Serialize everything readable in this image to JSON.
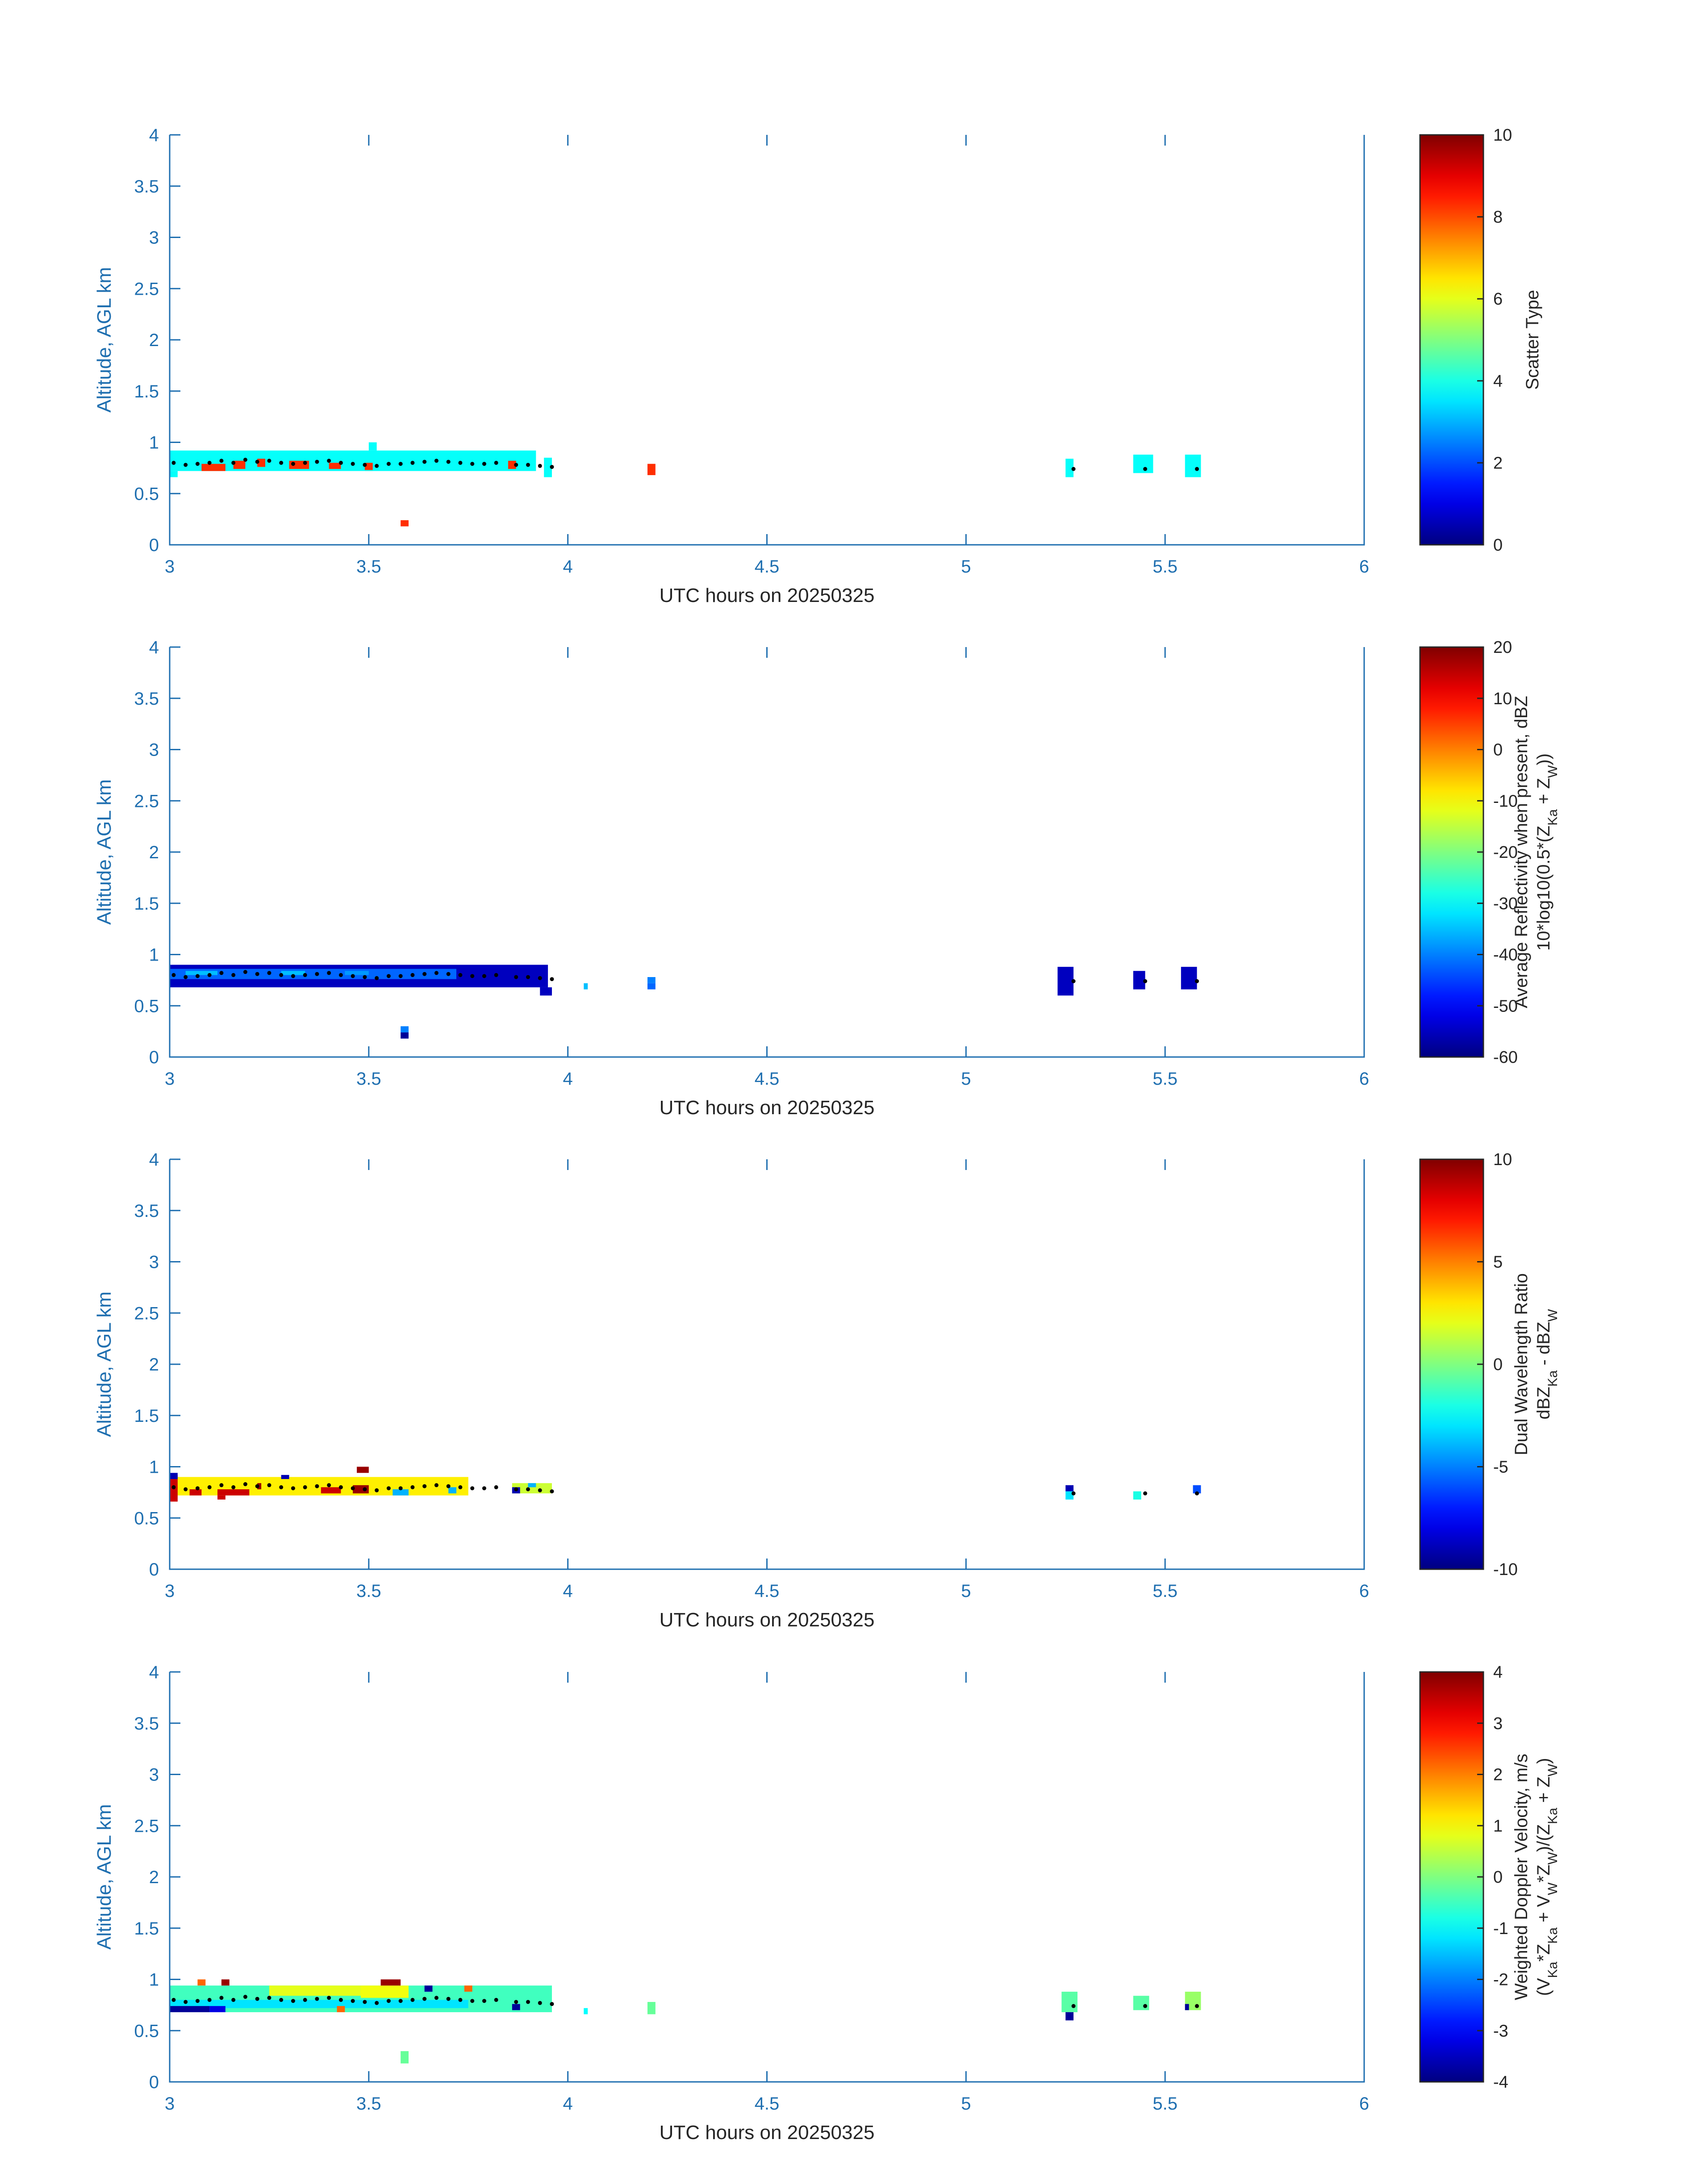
{
  "colors": {
    "axis": "#1f6fb0",
    "text": "#262626",
    "marker": "#000000"
  },
  "chart_data": [
    {
      "type": "heatmap",
      "id": "scatter",
      "xlabel": "UTC hours on 20250325",
      "ylabel": "Altitude, AGL km",
      "xlim": [
        3,
        6
      ],
      "ylim": [
        0,
        4
      ],
      "xticks": [
        "3",
        "3.5",
        "4",
        "4.5",
        "5",
        "5.5",
        "6"
      ],
      "yticks": [
        "0",
        "0.5",
        "1",
        "1.5",
        "2",
        "2.5",
        "3",
        "3.5",
        "4"
      ],
      "colorbar": {
        "label_lines": [
          "Scatter Type"
        ],
        "range": [
          0,
          10
        ],
        "ticks": [
          "0",
          "2",
          "4",
          "6",
          "8",
          "10"
        ],
        "colormap": "jet"
      },
      "cells": [
        {
          "x0": 3.0,
          "x1": 3.92,
          "y0": 0.72,
          "y1": 0.92,
          "v": 3.8
        },
        {
          "x0": 3.0,
          "x1": 3.02,
          "y0": 0.66,
          "y1": 0.72,
          "v": 3.8
        },
        {
          "x0": 3.08,
          "x1": 3.14,
          "y0": 0.72,
          "y1": 0.79,
          "v": 8.3
        },
        {
          "x0": 3.16,
          "x1": 3.19,
          "y0": 0.74,
          "y1": 0.82,
          "v": 8.3
        },
        {
          "x0": 3.22,
          "x1": 3.24,
          "y0": 0.76,
          "y1": 0.84,
          "v": 8.3
        },
        {
          "x0": 3.3,
          "x1": 3.35,
          "y0": 0.74,
          "y1": 0.82,
          "v": 8.3
        },
        {
          "x0": 3.4,
          "x1": 3.43,
          "y0": 0.74,
          "y1": 0.8,
          "v": 8.3
        },
        {
          "x0": 3.49,
          "x1": 3.51,
          "y0": 0.73,
          "y1": 0.8,
          "v": 8.3
        },
        {
          "x0": 3.5,
          "x1": 3.52,
          "y0": 0.92,
          "y1": 1.0,
          "v": 3.8
        },
        {
          "x0": 3.85,
          "x1": 3.87,
          "y0": 0.74,
          "y1": 0.82,
          "v": 8.3
        },
        {
          "x0": 3.94,
          "x1": 3.96,
          "y0": 0.66,
          "y1": 0.85,
          "v": 3.8
        },
        {
          "x0": 4.2,
          "x1": 4.22,
          "y0": 0.68,
          "y1": 0.79,
          "v": 8.3
        },
        {
          "x0": 3.58,
          "x1": 3.6,
          "y0": 0.18,
          "y1": 0.24,
          "v": 8.3
        },
        {
          "x0": 5.25,
          "x1": 5.27,
          "y0": 0.66,
          "y1": 0.84,
          "v": 3.8
        },
        {
          "x0": 5.42,
          "x1": 5.47,
          "y0": 0.7,
          "y1": 0.88,
          "v": 3.8
        },
        {
          "x0": 5.55,
          "x1": 5.59,
          "y0": 0.66,
          "y1": 0.88,
          "v": 3.8
        }
      ],
      "markers": {
        "x": [
          3.01,
          3.04,
          3.07,
          3.1,
          3.13,
          3.16,
          3.19,
          3.22,
          3.25,
          3.28,
          3.31,
          3.34,
          3.37,
          3.4,
          3.43,
          3.46,
          3.49,
          3.52,
          3.55,
          3.58,
          3.61,
          3.64,
          3.67,
          3.7,
          3.73,
          3.76,
          3.79,
          3.82,
          3.87,
          3.9,
          3.93,
          3.96,
          5.27,
          5.45,
          5.58
        ],
        "y": [
          0.8,
          0.78,
          0.79,
          0.8,
          0.82,
          0.8,
          0.83,
          0.81,
          0.82,
          0.8,
          0.79,
          0.8,
          0.81,
          0.82,
          0.8,
          0.79,
          0.78,
          0.77,
          0.79,
          0.79,
          0.8,
          0.81,
          0.82,
          0.81,
          0.8,
          0.79,
          0.79,
          0.8,
          0.78,
          0.78,
          0.77,
          0.76,
          0.74,
          0.74,
          0.74
        ]
      }
    },
    {
      "type": "heatmap",
      "id": "reflectivity",
      "xlabel": "UTC hours on 20250325",
      "ylabel": "Altitude, AGL km",
      "xlim": [
        3,
        6
      ],
      "ylim": [
        0,
        4
      ],
      "xticks": [
        "3",
        "3.5",
        "4",
        "4.5",
        "5",
        "5.5",
        "6"
      ],
      "yticks": [
        "0",
        "0.5",
        "1",
        "1.5",
        "2",
        "2.5",
        "3",
        "3.5",
        "4"
      ],
      "colorbar": {
        "label_lines": [
          "Average Reflectivity when present, dBZ",
          "10*log10(0.5*(Z_Ka + Z_W))"
        ],
        "range": [
          -60,
          20
        ],
        "ticks": [
          "-60",
          "-50",
          "-40",
          "-30",
          "-20",
          "-10",
          "0",
          "10",
          "20"
        ],
        "colormap": "jet"
      },
      "cells": [
        {
          "x0": 3.0,
          "x1": 3.95,
          "y0": 0.68,
          "y1": 0.9,
          "v": -55
        },
        {
          "x0": 3.0,
          "x1": 3.72,
          "y0": 0.76,
          "y1": 0.86,
          "v": -42
        },
        {
          "x0": 3.04,
          "x1": 3.12,
          "y0": 0.8,
          "y1": 0.84,
          "v": -35
        },
        {
          "x0": 3.28,
          "x1": 3.34,
          "y0": 0.8,
          "y1": 0.84,
          "v": -35
        },
        {
          "x0": 3.44,
          "x1": 3.5,
          "y0": 0.8,
          "y1": 0.84,
          "v": -38
        },
        {
          "x0": 3.93,
          "x1": 3.96,
          "y0": 0.6,
          "y1": 0.68,
          "v": -55
        },
        {
          "x0": 4.04,
          "x1": 4.05,
          "y0": 0.66,
          "y1": 0.72,
          "v": -35
        },
        {
          "x0": 4.2,
          "x1": 4.22,
          "y0": 0.66,
          "y1": 0.72,
          "v": -42
        },
        {
          "x0": 4.2,
          "x1": 4.22,
          "y0": 0.72,
          "y1": 0.78,
          "v": -40
        },
        {
          "x0": 3.58,
          "x1": 3.6,
          "y0": 0.24,
          "y1": 0.3,
          "v": -40
        },
        {
          "x0": 3.58,
          "x1": 3.6,
          "y0": 0.18,
          "y1": 0.24,
          "v": -58
        },
        {
          "x0": 5.23,
          "x1": 5.27,
          "y0": 0.6,
          "y1": 0.88,
          "v": -55
        },
        {
          "x0": 5.42,
          "x1": 5.45,
          "y0": 0.66,
          "y1": 0.84,
          "v": -55
        },
        {
          "x0": 5.54,
          "x1": 5.58,
          "y0": 0.66,
          "y1": 0.88,
          "v": -55
        }
      ],
      "markers": {
        "x": [
          3.01,
          3.04,
          3.07,
          3.1,
          3.13,
          3.16,
          3.19,
          3.22,
          3.25,
          3.28,
          3.31,
          3.34,
          3.37,
          3.4,
          3.43,
          3.46,
          3.49,
          3.52,
          3.55,
          3.58,
          3.61,
          3.64,
          3.67,
          3.7,
          3.73,
          3.76,
          3.79,
          3.82,
          3.87,
          3.9,
          3.93,
          3.96,
          5.27,
          5.45,
          5.58
        ],
        "y": [
          0.8,
          0.78,
          0.79,
          0.8,
          0.82,
          0.8,
          0.83,
          0.81,
          0.82,
          0.8,
          0.79,
          0.8,
          0.81,
          0.82,
          0.8,
          0.79,
          0.78,
          0.77,
          0.79,
          0.79,
          0.8,
          0.81,
          0.82,
          0.81,
          0.8,
          0.79,
          0.79,
          0.8,
          0.78,
          0.78,
          0.77,
          0.76,
          0.74,
          0.74,
          0.74
        ]
      }
    },
    {
      "type": "heatmap",
      "id": "dwr",
      "xlabel": "UTC hours on 20250325",
      "ylabel": "Altitude, AGL km",
      "xlim": [
        3,
        6
      ],
      "ylim": [
        0,
        4
      ],
      "xticks": [
        "3",
        "3.5",
        "4",
        "4.5",
        "5",
        "5.5",
        "6"
      ],
      "yticks": [
        "0",
        "0.5",
        "1",
        "1.5",
        "2",
        "2.5",
        "3",
        "3.5",
        "4"
      ],
      "colorbar": {
        "label_lines": [
          "Dual Wavelength Ratio",
          "dBZ_Ka - dBZ_W"
        ],
        "range": [
          -10,
          10
        ],
        "ticks": [
          "-10",
          "-5",
          "0",
          "5",
          "10"
        ],
        "colormap": "jet"
      },
      "cells": [
        {
          "x0": 3.0,
          "x1": 3.75,
          "y0": 0.72,
          "y1": 0.9,
          "v": 2.8
        },
        {
          "x0": 3.0,
          "x1": 3.02,
          "y0": 0.66,
          "y1": 0.92,
          "v": 8.5
        },
        {
          "x0": 3.05,
          "x1": 3.08,
          "y0": 0.72,
          "y1": 0.78,
          "v": 8.5
        },
        {
          "x0": 3.12,
          "x1": 3.2,
          "y0": 0.72,
          "y1": 0.78,
          "v": 8.5
        },
        {
          "x0": 3.12,
          "x1": 3.14,
          "y0": 0.68,
          "y1": 0.72,
          "v": 8.5
        },
        {
          "x0": 3.22,
          "x1": 3.23,
          "y0": 0.78,
          "y1": 0.84,
          "v": 9.5
        },
        {
          "x0": 3.38,
          "x1": 3.43,
          "y0": 0.74,
          "y1": 0.8,
          "v": 8.5
        },
        {
          "x0": 3.46,
          "x1": 3.5,
          "y0": 0.74,
          "y1": 0.82,
          "v": 9.5
        },
        {
          "x0": 3.47,
          "x1": 3.5,
          "y0": 0.94,
          "y1": 1.0,
          "v": 9.5
        },
        {
          "x0": 3.0,
          "x1": 3.02,
          "y0": 0.88,
          "y1": 0.94,
          "v": -9
        },
        {
          "x0": 3.28,
          "x1": 3.3,
          "y0": 0.88,
          "y1": 0.92,
          "v": -9
        },
        {
          "x0": 3.56,
          "x1": 3.6,
          "y0": 0.72,
          "y1": 0.78,
          "v": -4
        },
        {
          "x0": 3.7,
          "x1": 3.72,
          "y0": 0.74,
          "y1": 0.8,
          "v": -4
        },
        {
          "x0": 3.86,
          "x1": 3.96,
          "y0": 0.74,
          "y1": 0.84,
          "v": 1.5
        },
        {
          "x0": 3.86,
          "x1": 3.88,
          "y0": 0.74,
          "y1": 0.8,
          "v": -9
        },
        {
          "x0": 3.9,
          "x1": 3.92,
          "y0": 0.8,
          "y1": 0.84,
          "v": -4
        },
        {
          "x0": 5.25,
          "x1": 5.27,
          "y0": 0.76,
          "y1": 0.82,
          "v": -9
        },
        {
          "x0": 5.25,
          "x1": 5.27,
          "y0": 0.68,
          "y1": 0.76,
          "v": -3
        },
        {
          "x0": 5.42,
          "x1": 5.44,
          "y0": 0.68,
          "y1": 0.76,
          "v": -2
        },
        {
          "x0": 5.57,
          "x1": 5.59,
          "y0": 0.74,
          "y1": 0.82,
          "v": -6
        }
      ],
      "markers": {
        "x": [
          3.01,
          3.04,
          3.07,
          3.1,
          3.13,
          3.16,
          3.19,
          3.22,
          3.25,
          3.28,
          3.31,
          3.34,
          3.37,
          3.4,
          3.43,
          3.46,
          3.49,
          3.52,
          3.55,
          3.58,
          3.61,
          3.64,
          3.67,
          3.7,
          3.73,
          3.76,
          3.79,
          3.82,
          3.87,
          3.9,
          3.93,
          3.96,
          5.27,
          5.45,
          5.58
        ],
        "y": [
          0.8,
          0.78,
          0.79,
          0.8,
          0.82,
          0.8,
          0.83,
          0.81,
          0.82,
          0.8,
          0.79,
          0.8,
          0.81,
          0.82,
          0.8,
          0.79,
          0.78,
          0.77,
          0.79,
          0.79,
          0.8,
          0.81,
          0.82,
          0.81,
          0.8,
          0.79,
          0.79,
          0.8,
          0.78,
          0.78,
          0.77,
          0.76,
          0.74,
          0.74,
          0.74
        ]
      }
    },
    {
      "type": "heatmap",
      "id": "velocity",
      "xlabel": "UTC hours on 20250325",
      "ylabel": "Altitude, AGL km",
      "xlim": [
        3,
        6
      ],
      "ylim": [
        0,
        4
      ],
      "xticks": [
        "3",
        "3.5",
        "4",
        "4.5",
        "5",
        "5.5",
        "6"
      ],
      "yticks": [
        "0",
        "0.5",
        "1",
        "1.5",
        "2",
        "2.5",
        "3",
        "3.5",
        "4"
      ],
      "colorbar": {
        "label_lines": [
          "Weighted Doppler Velocity, m/s",
          "(V_Ka*Z_Ka + V_W*Z_W)/(Z_Ka + Z_W)"
        ],
        "range": [
          -4,
          4
        ],
        "ticks": [
          "-4",
          "-3",
          "-2",
          "-1",
          "0",
          "1",
          "2",
          "3",
          "4"
        ],
        "colormap": "jet"
      },
      "cells": [
        {
          "x0": 3.0,
          "x1": 3.96,
          "y0": 0.68,
          "y1": 0.94,
          "v": -0.5
        },
        {
          "x0": 3.0,
          "x1": 3.75,
          "y0": 0.72,
          "y1": 0.8,
          "v": -1.2
        },
        {
          "x0": 3.25,
          "x1": 3.48,
          "y0": 0.84,
          "y1": 0.94,
          "v": 0.8
        },
        {
          "x0": 3.48,
          "x1": 3.6,
          "y0": 0.82,
          "y1": 0.94,
          "v": 0.9
        },
        {
          "x0": 3.07,
          "x1": 3.09,
          "y0": 0.94,
          "y1": 1.0,
          "v": 2.2
        },
        {
          "x0": 3.13,
          "x1": 3.15,
          "y0": 0.94,
          "y1": 1.0,
          "v": 3.8
        },
        {
          "x0": 3.53,
          "x1": 3.58,
          "y0": 0.94,
          "y1": 1.0,
          "v": 3.8
        },
        {
          "x0": 3.0,
          "x1": 3.1,
          "y0": 0.68,
          "y1": 0.74,
          "v": -3.8
        },
        {
          "x0": 3.1,
          "x1": 3.14,
          "y0": 0.68,
          "y1": 0.74,
          "v": -3.2
        },
        {
          "x0": 3.42,
          "x1": 3.44,
          "y0": 0.68,
          "y1": 0.74,
          "v": 2.2
        },
        {
          "x0": 3.64,
          "x1": 3.66,
          "y0": 0.88,
          "y1": 0.94,
          "v": -3.8
        },
        {
          "x0": 3.74,
          "x1": 3.76,
          "y0": 0.88,
          "y1": 0.94,
          "v": 2.2
        },
        {
          "x0": 3.86,
          "x1": 3.88,
          "y0": 0.7,
          "y1": 0.76,
          "v": -3.8
        },
        {
          "x0": 4.04,
          "x1": 4.05,
          "y0": 0.66,
          "y1": 0.72,
          "v": -1.0
        },
        {
          "x0": 4.2,
          "x1": 4.22,
          "y0": 0.66,
          "y1": 0.78,
          "v": -0.2
        },
        {
          "x0": 3.58,
          "x1": 3.6,
          "y0": 0.18,
          "y1": 0.3,
          "v": -0.2
        },
        {
          "x0": 5.24,
          "x1": 5.28,
          "y0": 0.68,
          "y1": 0.88,
          "v": -0.3
        },
        {
          "x0": 5.25,
          "x1": 5.27,
          "y0": 0.6,
          "y1": 0.68,
          "v": -3.8
        },
        {
          "x0": 5.42,
          "x1": 5.46,
          "y0": 0.7,
          "y1": 0.84,
          "v": -0.3
        },
        {
          "x0": 5.55,
          "x1": 5.59,
          "y0": 0.7,
          "y1": 0.88,
          "v": 0.2
        },
        {
          "x0": 5.55,
          "x1": 5.56,
          "y0": 0.7,
          "y1": 0.76,
          "v": -3.8
        }
      ],
      "markers": {
        "x": [
          3.01,
          3.04,
          3.07,
          3.1,
          3.13,
          3.16,
          3.19,
          3.22,
          3.25,
          3.28,
          3.31,
          3.34,
          3.37,
          3.4,
          3.43,
          3.46,
          3.49,
          3.52,
          3.55,
          3.58,
          3.61,
          3.64,
          3.67,
          3.7,
          3.73,
          3.76,
          3.79,
          3.82,
          3.87,
          3.9,
          3.93,
          3.96,
          5.27,
          5.45,
          5.58
        ],
        "y": [
          0.8,
          0.78,
          0.79,
          0.8,
          0.82,
          0.8,
          0.83,
          0.81,
          0.82,
          0.8,
          0.79,
          0.8,
          0.81,
          0.82,
          0.8,
          0.79,
          0.78,
          0.77,
          0.79,
          0.79,
          0.8,
          0.81,
          0.82,
          0.81,
          0.8,
          0.79,
          0.79,
          0.8,
          0.78,
          0.78,
          0.77,
          0.76,
          0.74,
          0.74,
          0.74
        ]
      }
    }
  ]
}
